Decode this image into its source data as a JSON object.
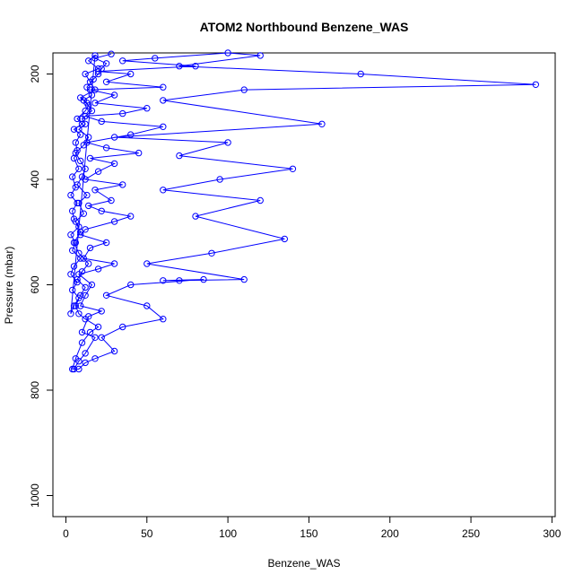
{
  "chart_data": {
    "type": "line",
    "title": "ATOM2 Northbound Benzene_WAS",
    "xlabel": "Benzene_WAS",
    "ylabel": "Pressure (mbar)",
    "xlim": [
      -8,
      302
    ],
    "ylim": [
      1040,
      160
    ],
    "y_reversed": true,
    "x_ticks": [
      0,
      50,
      100,
      150,
      200,
      250,
      300
    ],
    "y_ticks": [
      200,
      400,
      600,
      800,
      1000
    ],
    "grid": false,
    "series": [
      {
        "color": "#0000ff",
        "marker": "open-circle",
        "points": [
          [
            5,
            760
          ],
          [
            8,
            745
          ],
          [
            12,
            730
          ],
          [
            18,
            700
          ],
          [
            10,
            690
          ],
          [
            14,
            660
          ],
          [
            22,
            650
          ],
          [
            9,
            640
          ],
          [
            12,
            620
          ],
          [
            16,
            600
          ],
          [
            8,
            580
          ],
          [
            20,
            570
          ],
          [
            30,
            560
          ],
          [
            11,
            550
          ],
          [
            15,
            530
          ],
          [
            25,
            520
          ],
          [
            9,
            505
          ],
          [
            12,
            495
          ],
          [
            30,
            480
          ],
          [
            40,
            470
          ],
          [
            22,
            460
          ],
          [
            14,
            450
          ],
          [
            28,
            440
          ],
          [
            18,
            420
          ],
          [
            35,
            410
          ],
          [
            12,
            400
          ],
          [
            20,
            385
          ],
          [
            30,
            370
          ],
          [
            15,
            360
          ],
          [
            45,
            350
          ],
          [
            25,
            340
          ],
          [
            13,
            330
          ],
          [
            40,
            315
          ],
          [
            60,
            300
          ],
          [
            22,
            290
          ],
          [
            12,
            280
          ],
          [
            35,
            275
          ],
          [
            50,
            265
          ],
          [
            18,
            255
          ],
          [
            30,
            240
          ],
          [
            15,
            230
          ],
          [
            60,
            225
          ],
          [
            25,
            215
          ],
          [
            40,
            200
          ],
          [
            20,
            195
          ],
          [
            80,
            185
          ],
          [
            35,
            175
          ],
          [
            55,
            170
          ],
          [
            100,
            160
          ],
          [
            120,
            165
          ],
          [
            70,
            185
          ],
          [
            182,
            200
          ],
          [
            290,
            220
          ],
          [
            110,
            230
          ],
          [
            60,
            250
          ],
          [
            158,
            295
          ],
          [
            30,
            320
          ],
          [
            100,
            330
          ],
          [
            70,
            355
          ],
          [
            140,
            380
          ],
          [
            95,
            400
          ],
          [
            60,
            420
          ],
          [
            120,
            440
          ],
          [
            80,
            470
          ],
          [
            135,
            513
          ],
          [
            90,
            540
          ],
          [
            50,
            560
          ],
          [
            110,
            590
          ],
          [
            70,
            592
          ],
          [
            60,
            592
          ],
          [
            85,
            590
          ],
          [
            40,
            600
          ],
          [
            25,
            620
          ],
          [
            50,
            640
          ],
          [
            60,
            665
          ],
          [
            35,
            680
          ],
          [
            22,
            700
          ],
          [
            30,
            726
          ],
          [
            18,
            740
          ],
          [
            12,
            748
          ],
          [
            8,
            760
          ],
          [
            4,
            760
          ],
          [
            6,
            740
          ],
          [
            10,
            710
          ],
          [
            15,
            690
          ],
          [
            20,
            680
          ],
          [
            12,
            665
          ],
          [
            8,
            655
          ],
          [
            6,
            640
          ],
          [
            9,
            620
          ],
          [
            12,
            605
          ],
          [
            7,
            590
          ],
          [
            10,
            575
          ],
          [
            14,
            560
          ],
          [
            8,
            540
          ],
          [
            5,
            520
          ],
          [
            9,
            500
          ],
          [
            6,
            480
          ],
          [
            11,
            465
          ],
          [
            8,
            445
          ],
          [
            13,
            430
          ],
          [
            7,
            410
          ],
          [
            10,
            395
          ],
          [
            12,
            380
          ],
          [
            9,
            365
          ],
          [
            6,
            350
          ],
          [
            11,
            335
          ],
          [
            14,
            320
          ],
          [
            8,
            305
          ],
          [
            12,
            295
          ],
          [
            10,
            285
          ],
          [
            16,
            270
          ],
          [
            13,
            255
          ],
          [
            9,
            245
          ],
          [
            18,
            230
          ],
          [
            15,
            215
          ],
          [
            12,
            200
          ],
          [
            20,
            190
          ],
          [
            14,
            175
          ],
          [
            18,
            165
          ],
          [
            3,
            655
          ],
          [
            5,
            640
          ],
          [
            8,
            625
          ],
          [
            4,
            610
          ],
          [
            7,
            595
          ],
          [
            3,
            580
          ],
          [
            5,
            565
          ],
          [
            9,
            550
          ],
          [
            4,
            535
          ],
          [
            6,
            520
          ],
          [
            3,
            505
          ],
          [
            8,
            490
          ],
          [
            5,
            475
          ],
          [
            4,
            460
          ],
          [
            7,
            445
          ],
          [
            3,
            430
          ],
          [
            6,
            415
          ],
          [
            4,
            395
          ],
          [
            8,
            380
          ],
          [
            5,
            360
          ],
          [
            7,
            345
          ],
          [
            6,
            330
          ],
          [
            9,
            315
          ],
          [
            5,
            305
          ],
          [
            10,
            295
          ],
          [
            7,
            285
          ],
          [
            12,
            270
          ],
          [
            14,
            260
          ],
          [
            11,
            250
          ],
          [
            16,
            240
          ],
          [
            13,
            225
          ],
          [
            17,
            210
          ],
          [
            20,
            200
          ],
          [
            22,
            190
          ],
          [
            25,
            180
          ],
          [
            18,
            170
          ],
          [
            28,
            162
          ]
        ]
      }
    ]
  }
}
